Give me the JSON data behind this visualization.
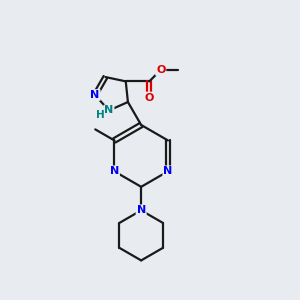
{
  "background_color": "#e8ecf0",
  "bond_color": "#1a1a1a",
  "nitrogen_color": "#0000ee",
  "oxygen_color": "#dd0000",
  "nh_color": "#008080",
  "line_width": 1.6,
  "figsize": [
    3.0,
    3.0
  ],
  "dpi": 100,
  "xlim": [
    0,
    10
  ],
  "ylim": [
    0,
    10
  ]
}
